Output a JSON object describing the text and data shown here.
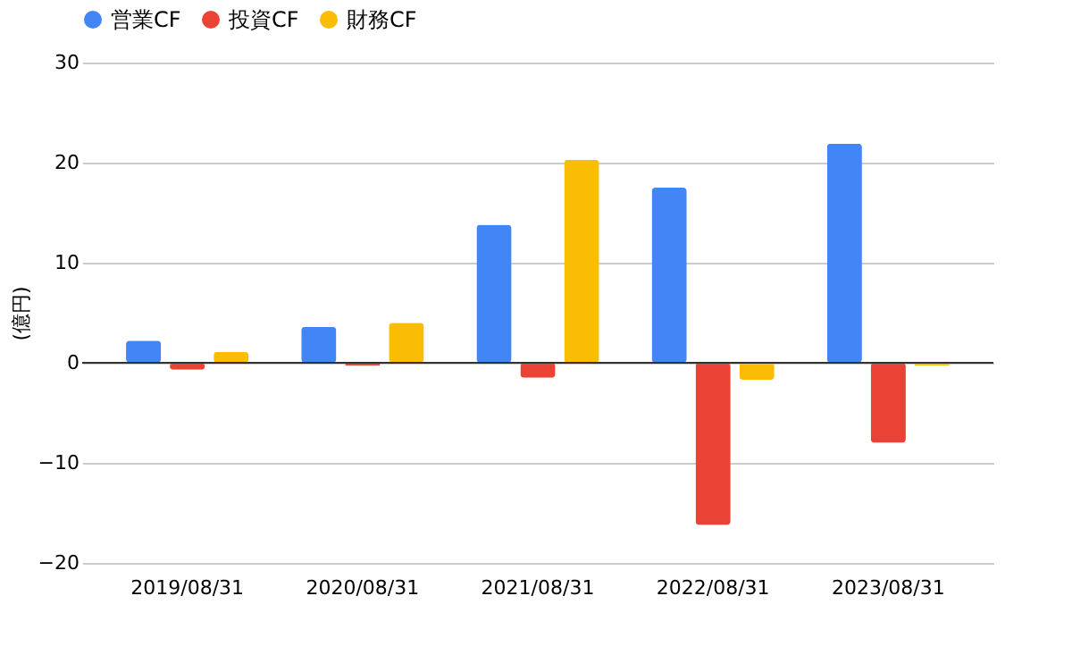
{
  "chart_data": {
    "type": "bar",
    "ylabel": "(億円)",
    "categories": [
      "2019/08/31",
      "2020/08/31",
      "2021/08/31",
      "2022/08/31",
      "2023/08/31"
    ],
    "series": [
      {
        "name": "営業CF",
        "color": "#4285f4",
        "values": [
          2.2,
          3.6,
          13.8,
          17.5,
          21.9
        ]
      },
      {
        "name": "投資CF",
        "color": "#ea4335",
        "values": [
          -0.7,
          -0.3,
          -1.5,
          -16.2,
          -8.0
        ]
      },
      {
        "name": "財務CF",
        "color": "#fbbc04",
        "values": [
          1.1,
          4.0,
          20.3,
          -1.7,
          -0.3
        ]
      }
    ],
    "ylim": [
      -20,
      30
    ],
    "yticks": [
      -20,
      -10,
      0,
      10,
      20,
      30
    ],
    "grid": "y",
    "legend": "top"
  }
}
